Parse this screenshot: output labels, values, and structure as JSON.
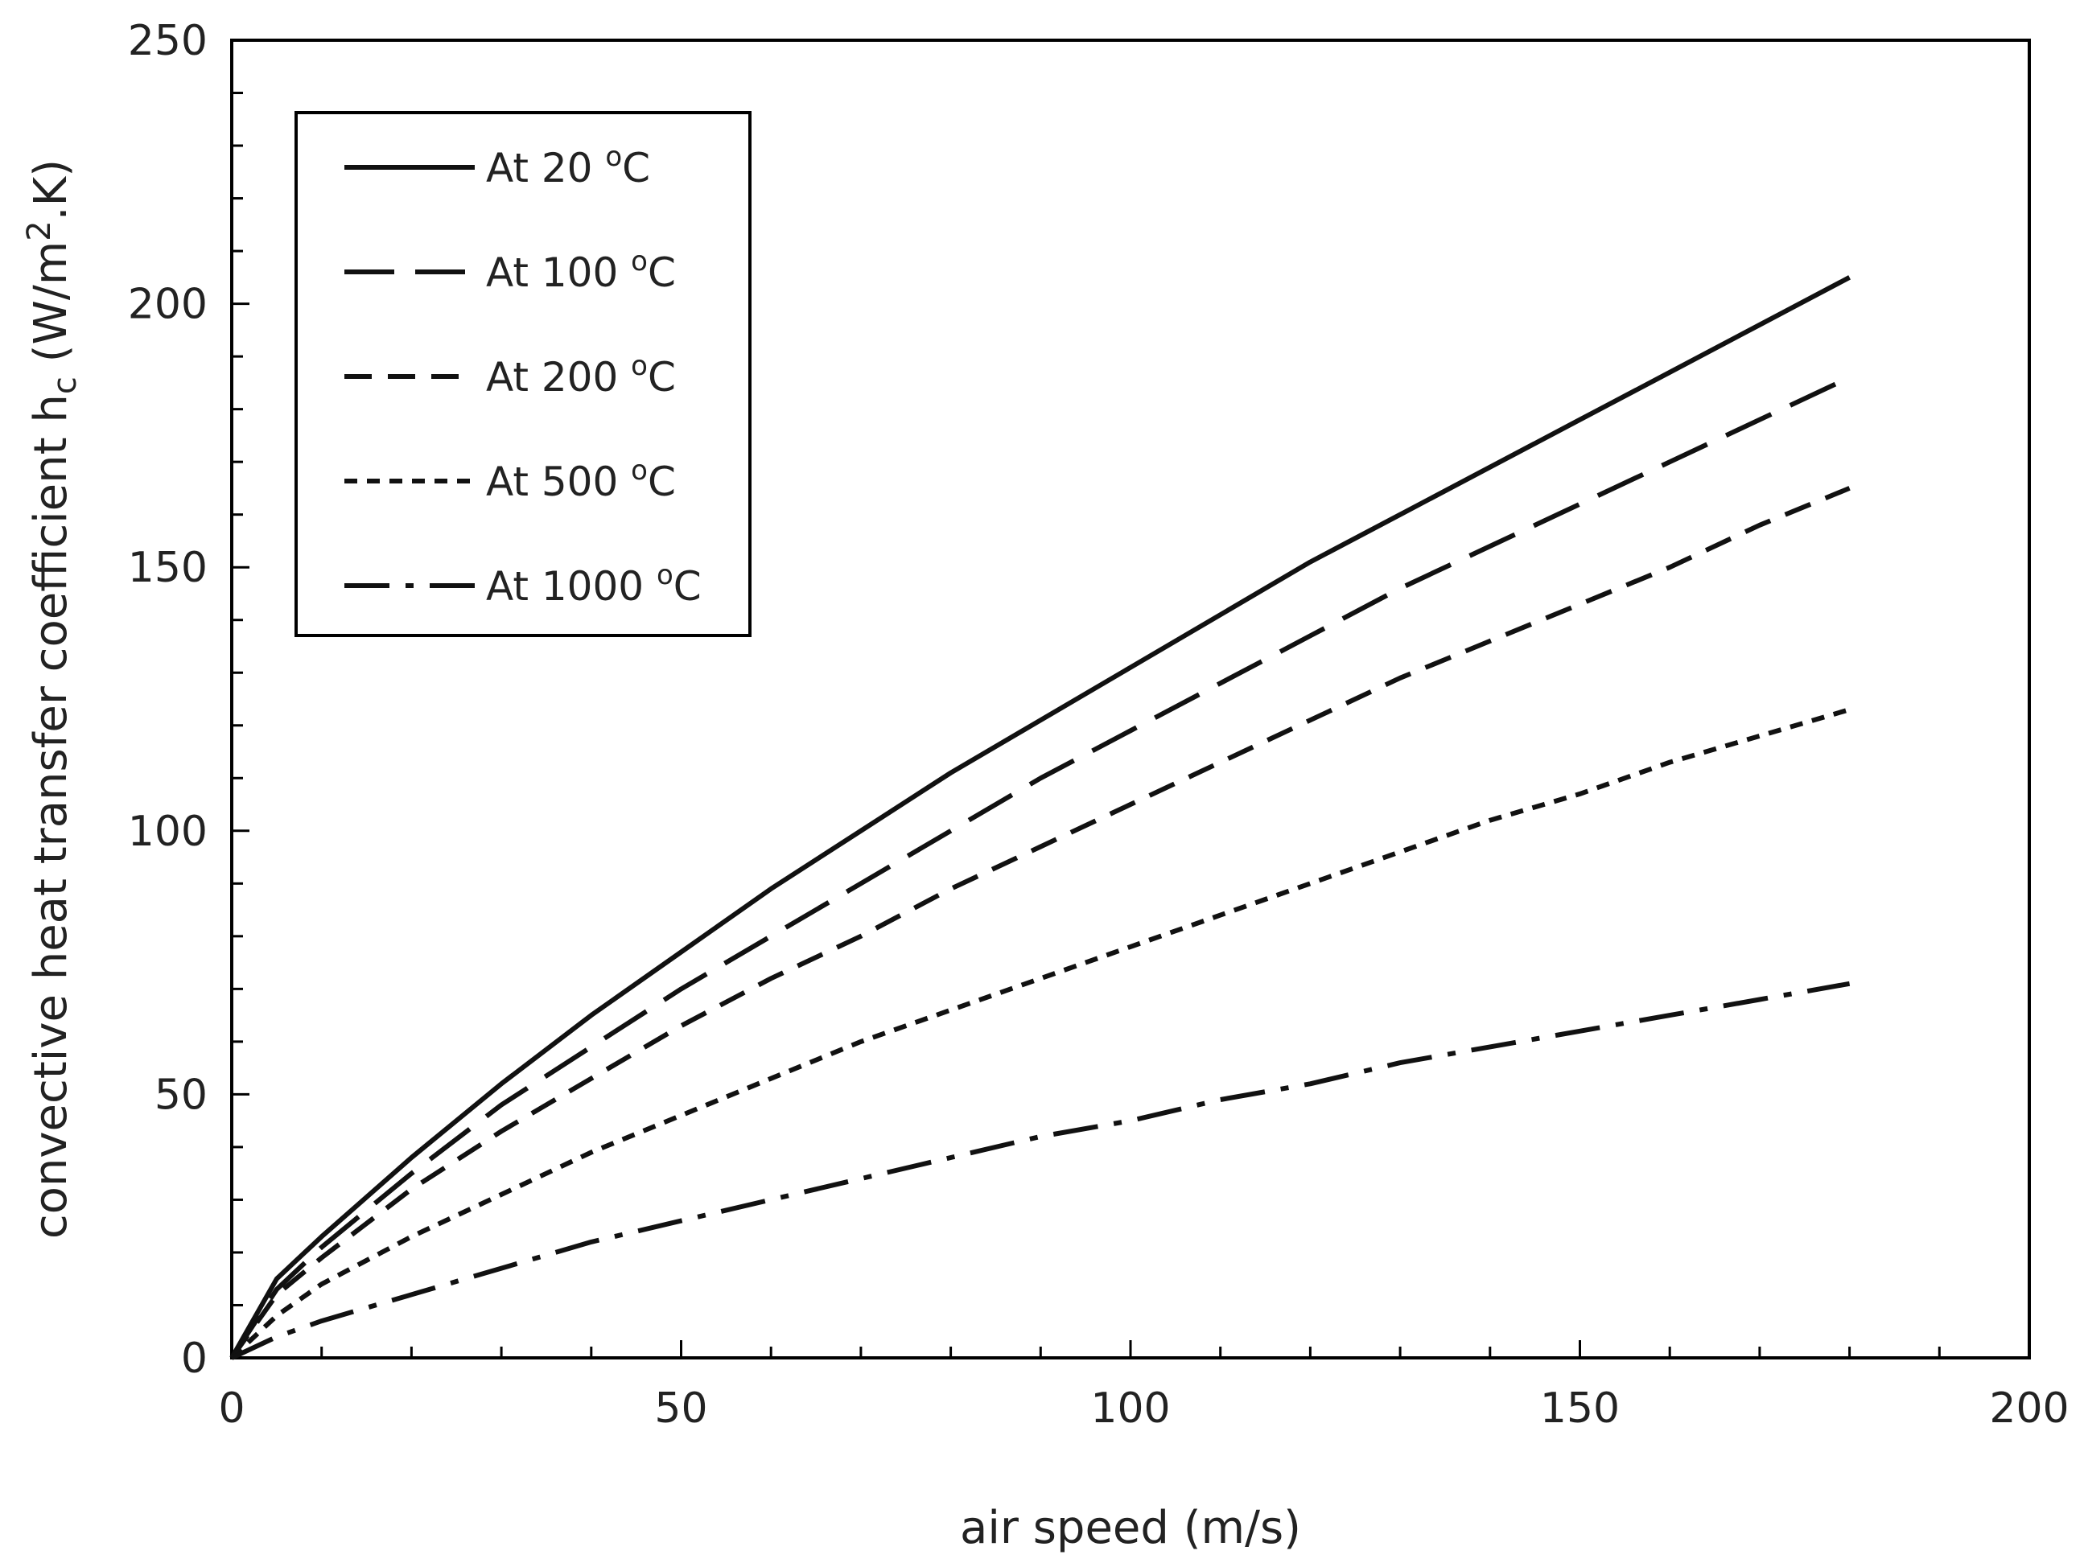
{
  "chart_data": {
    "type": "line",
    "title": "",
    "xlabel": "air speed (m/s)",
    "ylabel": {
      "base": "convective heat transfer coefficient h",
      "sub": "c",
      "unit_open": " (W/m",
      "sup": "2",
      "unit_close": ".K)"
    },
    "xlim": [
      0,
      200
    ],
    "ylim": [
      0,
      250
    ],
    "xticks": [
      0,
      50,
      100,
      150,
      200
    ],
    "yticks": [
      0,
      50,
      100,
      150,
      200,
      250
    ],
    "x_minor_step": 10,
    "y_minor_step": 10,
    "grid": false,
    "legend_position": "top-left",
    "series": [
      {
        "name": "At 20 °C",
        "label_text": "At 20",
        "dash": "solid",
        "x": [
          0,
          5,
          10,
          20,
          30,
          40,
          50,
          60,
          70,
          80,
          90,
          100,
          110,
          120,
          130,
          140,
          150,
          160,
          170,
          180
        ],
        "y": [
          0,
          15,
          23,
          38,
          52,
          65,
          77,
          89,
          100,
          111,
          121,
          131,
          141,
          151,
          160,
          169,
          178,
          187,
          196,
          205
        ]
      },
      {
        "name": "At 100 °C",
        "label_text": "At 100",
        "dash": "longdash",
        "x": [
          0,
          5,
          10,
          20,
          30,
          40,
          50,
          60,
          70,
          80,
          90,
          100,
          110,
          120,
          130,
          140,
          150,
          160,
          170,
          180
        ],
        "y": [
          0,
          13,
          21,
          35,
          48,
          59,
          70,
          80,
          90,
          100,
          110,
          119,
          128,
          137,
          146,
          154,
          162,
          170,
          178,
          186
        ]
      },
      {
        "name": "At 200 °C",
        "label_text": "At 200",
        "dash": "dash",
        "x": [
          0,
          5,
          10,
          20,
          30,
          40,
          50,
          60,
          70,
          80,
          90,
          100,
          110,
          120,
          130,
          140,
          150,
          160,
          170,
          180
        ],
        "y": [
          0,
          12,
          19,
          32,
          43,
          53,
          63,
          72,
          80,
          89,
          97,
          105,
          113,
          121,
          129,
          136,
          143,
          150,
          158,
          165
        ]
      },
      {
        "name": "At 500 °C",
        "label_text": "At 500",
        "dash": "shortdash",
        "x": [
          0,
          5,
          10,
          20,
          30,
          40,
          50,
          60,
          70,
          80,
          90,
          100,
          110,
          120,
          130,
          140,
          150,
          160,
          170,
          180
        ],
        "y": [
          0,
          8,
          14,
          23,
          31,
          39,
          46,
          53,
          60,
          66,
          72,
          78,
          84,
          90,
          96,
          102,
          107,
          113,
          118,
          123
        ]
      },
      {
        "name": "At 1000 °C",
        "label_text": "At 1000",
        "dash": "dashdot",
        "x": [
          0,
          5,
          10,
          20,
          30,
          40,
          50,
          60,
          70,
          80,
          90,
          100,
          110,
          120,
          130,
          140,
          150,
          160,
          170,
          180
        ],
        "y": [
          0,
          4,
          7,
          12,
          17,
          22,
          26,
          30,
          34,
          38,
          42,
          45,
          49,
          52,
          56,
          59,
          62,
          65,
          68,
          71
        ]
      }
    ],
    "unit_sup": "o",
    "unit_letter": "C",
    "colors": {
      "axis": "#000000",
      "line": "#111111",
      "legend_border": "#000000",
      "text": "#222222"
    }
  }
}
